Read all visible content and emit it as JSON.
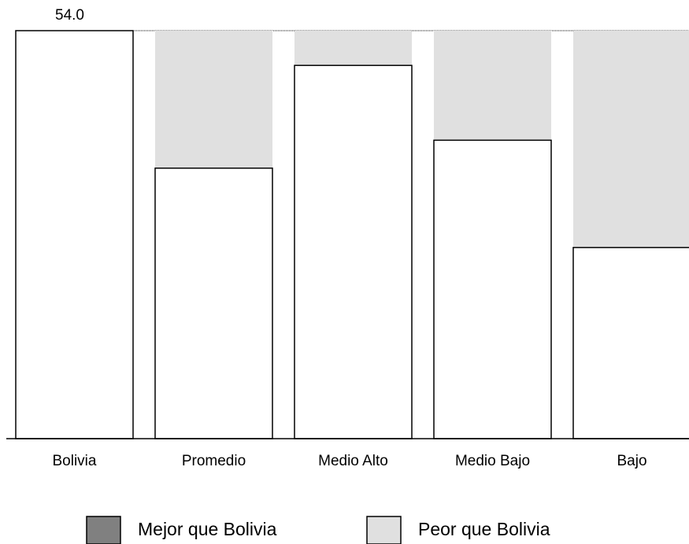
{
  "chart_data": {
    "type": "bar",
    "categories": [
      "Bolivia",
      "Promedio",
      "Medio Alto",
      "Medio Bajo",
      "Bajo"
    ],
    "values": [
      54.0,
      35.8,
      49.4,
      39.5,
      25.3
    ],
    "value_labels": [
      "54.0",
      null,
      null,
      null,
      null
    ],
    "color": "#ffffff",
    "series": [
      {
        "name": "Mejor que Bolivia",
        "color": "#808080",
        "values": [
          0,
          0,
          0,
          0,
          0
        ]
      },
      {
        "name": "Peor que Bolivia",
        "color": "#e0e0e0",
        "values": [
          0,
          18.2,
          4.6,
          14.5,
          28.7
        ]
      }
    ],
    "ylim": [
      0,
      54
    ]
  }
}
